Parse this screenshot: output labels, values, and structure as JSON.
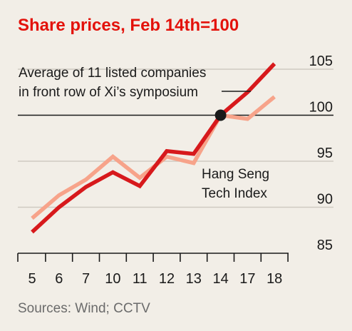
{
  "colors": {
    "background": "#f2eee7",
    "title": "#e3120b",
    "average_series": "#d7191c",
    "hang_seng_series": "#f7a38a",
    "gridline": "#cfcac2",
    "baseline": "#1a1a1a",
    "source_text": "#6b6b6b",
    "marker": "#1a1a1a"
  },
  "source": "Sources: Wind; CCTV",
  "chart_data": {
    "type": "line",
    "title": "Share prices, Feb 14th=100",
    "xlabel": "",
    "ylabel": "",
    "categories": [
      "5",
      "6",
      "7",
      "10",
      "11",
      "12",
      "13",
      "14",
      "17",
      "18"
    ],
    "ylim": [
      85,
      105
    ],
    "yticks": [
      85,
      90,
      95,
      100,
      105
    ],
    "reference_line": 100,
    "grid": true,
    "y_axis_side": "right",
    "series": [
      {
        "name": "Average of 11 listed companies in front row of Xi’s symposium",
        "label_lines": [
          "Average of 11 listed companies",
          "in front row of Xi’s symposium"
        ],
        "color_key": "average_series",
        "values": [
          87.3,
          90.0,
          92.2,
          93.8,
          92.3,
          96.1,
          95.8,
          100.0,
          102.5,
          105.6
        ]
      },
      {
        "name": "Hang Seng Tech Index",
        "label_lines": [
          "Hang Seng",
          "Tech Index"
        ],
        "color_key": "hang_seng_series",
        "values": [
          88.8,
          91.3,
          93.0,
          95.5,
          93.2,
          95.5,
          94.8,
          100.0,
          99.6,
          102.0
        ]
      }
    ],
    "marker": {
      "category": "14",
      "value": 100
    }
  }
}
